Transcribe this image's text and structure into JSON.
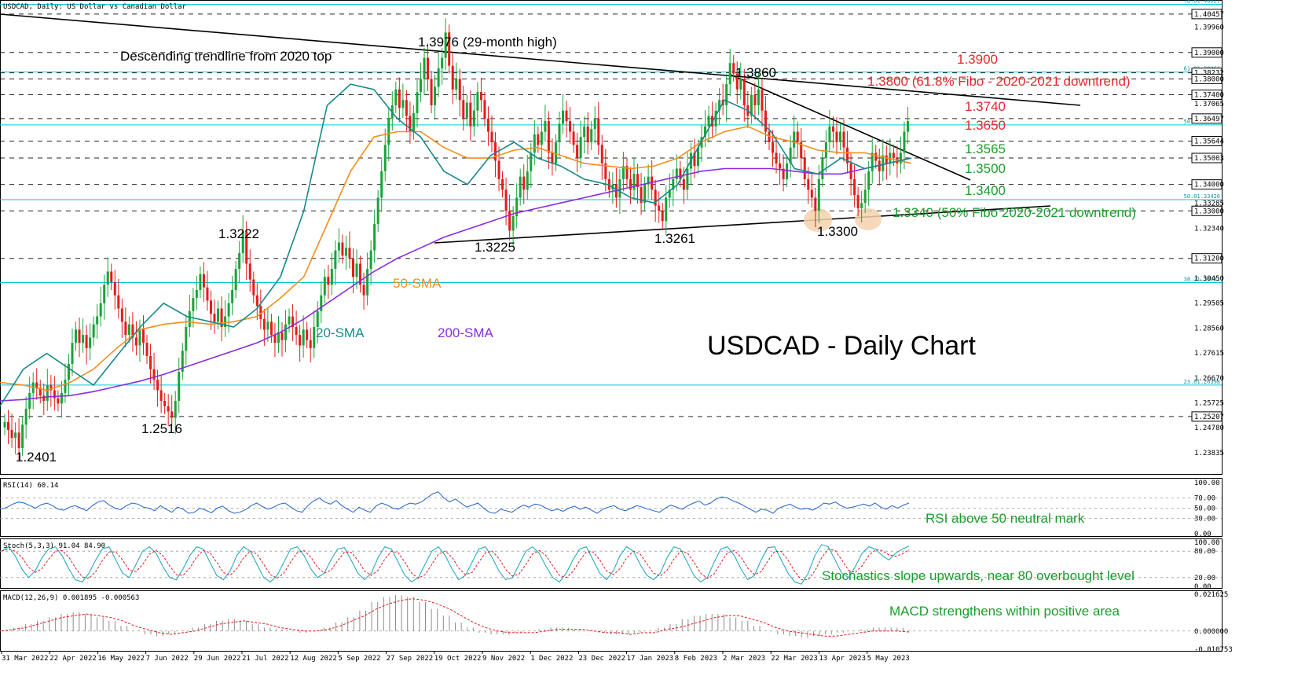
{
  "chart_data": {
    "type": "candlestick",
    "title": "USDCAD, Daily: US Dollar vs Canadian Dollar",
    "watermark": "USDCAD - Daily Chart",
    "ylim": [
      1.2303,
      1.4096
    ],
    "x_ticks": [
      "31 Mar 2022",
      "22 Apr 2022",
      "16 May 2022",
      "7 Jun 2022",
      "29 Jun 2022",
      "21 Jul 2022",
      "12 Aug 2022",
      "5 Sep 2022",
      "27 Sep 2022",
      "19 Oct 2022",
      "9 Nov 2022",
      "1 Dec 2022",
      "23 Dec 2022",
      "17 Jan 2023",
      "8 Feb 2023",
      "2 Mar 2023",
      "22 Mar 2023",
      "13 Apr 2023",
      "5 May 2023"
    ],
    "y_ticks": [
      "1.39960",
      "1.39000",
      "1.37065",
      "1.35640",
      "1.34230",
      "1.33285",
      "1.32340",
      "1.31395",
      "1.30450",
      "1.29505",
      "1.28560",
      "1.27615",
      "1.26670",
      "1.25725",
      "1.24780",
      "1.23835"
    ],
    "price_boxes": [
      {
        "label": "1.40457",
        "value": 1.40457
      },
      {
        "label": "1.39000",
        "value": 1.39
      },
      {
        "label": "1.38232",
        "value": 1.38232
      },
      {
        "label": "1.38000",
        "value": 1.38
      },
      {
        "label": "1.37400",
        "value": 1.374
      },
      {
        "label": "1.36497",
        "value": 1.36497
      },
      {
        "label": "1.35644",
        "value": 1.35644
      },
      {
        "label": "1.35003",
        "value": 1.35003
      },
      {
        "label": "1.34000",
        "value": 1.34
      },
      {
        "label": "1.33000",
        "value": 1.33
      },
      {
        "label": "1.31200",
        "value": 1.312
      },
      {
        "label": "1.25207",
        "value": 1.25207
      }
    ],
    "fib_levels": [
      {
        "label": "78.61.40827",
        "value": 1.40827
      },
      {
        "label": "61.81.38261",
        "value": 1.38261
      },
      {
        "label": "50.01.36257",
        "value": 1.36257
      },
      {
        "label": "50.01.33426",
        "value": 1.33426
      },
      {
        "label": "38.21.30281",
        "value": 1.30281
      },
      {
        "label": "23.61.26398",
        "value": 1.26398
      }
    ],
    "candles": [
      1.25,
      1.247,
      1.244,
      1.246,
      1.2401,
      1.249,
      1.255,
      1.261,
      1.265,
      1.263,
      1.26,
      1.258,
      1.264,
      1.262,
      1.259,
      1.257,
      1.261,
      1.266,
      1.272,
      1.28,
      1.285,
      1.28,
      1.283,
      1.278,
      1.282,
      1.287,
      1.29,
      1.295,
      1.302,
      1.307,
      1.303,
      1.298,
      1.293,
      1.288,
      1.283,
      1.287,
      1.282,
      1.279,
      1.285,
      1.28,
      1.275,
      1.27,
      1.266,
      1.262,
      1.258,
      1.256,
      1.254,
      1.2516,
      1.258,
      1.269,
      1.277,
      1.286,
      1.292,
      1.297,
      1.3,
      1.306,
      1.301,
      1.296,
      1.291,
      1.288,
      1.293,
      1.286,
      1.29,
      1.295,
      1.3,
      1.308,
      1.314,
      1.3222,
      1.31,
      1.304,
      1.298,
      1.294,
      1.289,
      1.285,
      1.288,
      1.283,
      1.28,
      1.284,
      1.281,
      1.287,
      1.29,
      1.286,
      1.283,
      1.279,
      1.285,
      1.281,
      1.278,
      1.286,
      1.292,
      1.298,
      1.305,
      1.302,
      1.308,
      1.315,
      1.318,
      1.313,
      1.316,
      1.312,
      1.305,
      1.31,
      1.302,
      1.298,
      1.308,
      1.315,
      1.325,
      1.335,
      1.345,
      1.355,
      1.365,
      1.37,
      1.376,
      1.369,
      1.372,
      1.366,
      1.36,
      1.367,
      1.375,
      1.38,
      1.388,
      1.38,
      1.37,
      1.377,
      1.384,
      1.388,
      1.3976,
      1.385,
      1.376,
      1.38,
      1.372,
      1.365,
      1.371,
      1.362,
      1.368,
      1.375,
      1.372,
      1.365,
      1.36,
      1.356,
      1.349,
      1.342,
      1.338,
      1.33,
      1.3225,
      1.328,
      1.335,
      1.343,
      1.338,
      1.345,
      1.352,
      1.359,
      1.355,
      1.36,
      1.364,
      1.352,
      1.348,
      1.356,
      1.363,
      1.368,
      1.364,
      1.36,
      1.355,
      1.35,
      1.358,
      1.362,
      1.356,
      1.361,
      1.365,
      1.355,
      1.348,
      1.342,
      1.338,
      1.34,
      1.335,
      1.342,
      1.347,
      1.342,
      1.338,
      1.344,
      1.339,
      1.333,
      1.34,
      1.343,
      1.338,
      1.332,
      1.33,
      1.3261,
      1.335,
      1.338,
      1.342,
      1.346,
      1.342,
      1.338,
      1.346,
      1.352,
      1.347,
      1.354,
      1.358,
      1.362,
      1.366,
      1.362,
      1.368,
      1.372,
      1.37,
      1.378,
      1.386,
      1.382,
      1.376,
      1.38,
      1.37,
      1.366,
      1.374,
      1.37,
      1.376,
      1.368,
      1.36,
      1.356,
      1.352,
      1.348,
      1.346,
      1.342,
      1.348,
      1.354,
      1.36,
      1.356,
      1.35,
      1.342,
      1.338,
      1.335,
      1.33,
      1.342,
      1.35,
      1.356,
      1.362,
      1.36,
      1.356,
      1.36,
      1.354,
      1.348,
      1.342,
      1.336,
      1.331,
      1.333,
      1.338,
      1.345,
      1.352,
      1.349,
      1.345,
      1.351,
      1.348,
      1.352,
      1.35,
      1.348,
      1.352,
      1.36,
      1.364
    ],
    "sma20": [
      1.256,
      1.27,
      1.276,
      1.27,
      1.264,
      1.275,
      1.286,
      1.295,
      1.29,
      1.288,
      1.286,
      1.293,
      1.305,
      1.33,
      1.37,
      1.378,
      1.376,
      1.365,
      1.358,
      1.345,
      1.34,
      1.351,
      1.356,
      1.35,
      1.347,
      1.342,
      1.34,
      1.335,
      1.333,
      1.34,
      1.356,
      1.372,
      1.368,
      1.36,
      1.346,
      1.344,
      1.35,
      1.346,
      1.348,
      1.35
    ],
    "sma50": [
      1.265,
      1.264,
      1.262,
      1.265,
      1.27,
      1.278,
      1.285,
      1.287,
      1.288,
      1.287,
      1.288,
      1.29,
      1.297,
      1.305,
      1.325,
      1.345,
      1.358,
      1.36,
      1.36,
      1.354,
      1.35,
      1.35,
      1.353,
      1.354,
      1.351,
      1.348,
      1.347,
      1.346,
      1.347,
      1.35,
      1.356,
      1.36,
      1.362,
      1.358,
      1.356,
      1.353,
      1.352,
      1.352,
      1.35,
      1.348
    ],
    "sma200": [
      1.258,
      1.2585,
      1.2595,
      1.26,
      1.2615,
      1.2635,
      1.2655,
      1.268,
      1.271,
      1.274,
      1.277,
      1.28,
      1.284,
      1.289,
      1.295,
      1.301,
      1.307,
      1.312,
      1.316,
      1.32,
      1.323,
      1.326,
      1.329,
      1.331,
      1.333,
      1.335,
      1.337,
      1.339,
      1.341,
      1.343,
      1.345,
      1.346,
      1.346,
      1.346,
      1.345,
      1.344,
      1.344,
      1.346,
      1.348,
      1.35
    ],
    "annotations": [
      {
        "text": "Descending trendline from 2020 top",
        "color": "#000000",
        "size": 17
      },
      {
        "text": "1.3976 (29-month high)",
        "color": "#000000",
        "size": 17
      },
      {
        "text": "1.3860",
        "color": "#000000",
        "size": 17
      },
      {
        "text": "1.3900",
        "color": "#e8262d",
        "size": 17
      },
      {
        "text": "1.3800 (61.8% Fibo - 2020-2021 downtrend)",
        "color": "#e8262d",
        "size": 17
      },
      {
        "text": "1.3740",
        "color": "#e8262d",
        "size": 17
      },
      {
        "text": "1.3650",
        "color": "#e8262d",
        "size": 17
      },
      {
        "text": "1.3565",
        "color": "#1a9e2c",
        "size": 17
      },
      {
        "text": "1.3500",
        "color": "#1a9e2c",
        "size": 17
      },
      {
        "text": "1.3400",
        "color": "#1a9e2c",
        "size": 17
      },
      {
        "text": "1.3340 (50% Fibo 2020-2021 downtrend)",
        "color": "#1a9e2c",
        "size": 17
      },
      {
        "text": "1.3300",
        "color": "#000000",
        "size": 17
      },
      {
        "text": "1.3225",
        "color": "#000000",
        "size": 17
      },
      {
        "text": "1.3261",
        "color": "#000000",
        "size": 17
      },
      {
        "text": "1.3222",
        "color": "#000000",
        "size": 17
      },
      {
        "text": "1.2516",
        "color": "#000000",
        "size": 17
      },
      {
        "text": "1.2401",
        "color": "#000000",
        "size": 17
      },
      {
        "text": "50-SMA",
        "color": "#f28e1c",
        "size": 17
      },
      {
        "text": "20-SMA",
        "color": "#168a8a",
        "size": 17
      },
      {
        "text": "200-SMA",
        "color": "#8a2be2",
        "size": 17
      }
    ],
    "rsi": {
      "title": "RSI(14) 60.14",
      "ticks": [
        "100.00",
        "70.00",
        "50.00",
        "30.00",
        "0.00"
      ],
      "note": "RSI above 50 neutral mark",
      "values": [
        48,
        52,
        58,
        62,
        60,
        55,
        50,
        57,
        60,
        55,
        48,
        46,
        52,
        55,
        50,
        45,
        55,
        62,
        65,
        56,
        50,
        47,
        55,
        60,
        58,
        52,
        50,
        45,
        55,
        48,
        42,
        52,
        48,
        40,
        42,
        50,
        46,
        41,
        50,
        54,
        45,
        40,
        42,
        47,
        55,
        60,
        53,
        48,
        52,
        58,
        60,
        52,
        45,
        42,
        55,
        64,
        70,
        62,
        58,
        65,
        55,
        48,
        42,
        52,
        46,
        42,
        54,
        60,
        56,
        50,
        48,
        55,
        60,
        58,
        62,
        70,
        78,
        82,
        70,
        62,
        68,
        60,
        52,
        56,
        60,
        50,
        42,
        40,
        48,
        45,
        42,
        50,
        56,
        52,
        58,
        56,
        50,
        45,
        48,
        44,
        50,
        54,
        48,
        52,
        46,
        40,
        48,
        52,
        55,
        48,
        45,
        50,
        55,
        52,
        48,
        45,
        42,
        50,
        56,
        52,
        48,
        55,
        60,
        64,
        56,
        60,
        68,
        72,
        70,
        64,
        60,
        54,
        48,
        42,
        48,
        46,
        40,
        50,
        54,
        58,
        52,
        48,
        50,
        46,
        52,
        60,
        58,
        62,
        55,
        50,
        52,
        55,
        58,
        54,
        60,
        52,
        48,
        55,
        50,
        56,
        60
      ]
    },
    "stoch": {
      "title": "Stoch(5,3,3) 91.04 84.90",
      "ticks": [
        "100.00",
        "80.00",
        "20.00",
        "0.00"
      ],
      "note": "Stochastics slope upwards, near 80 overbought level",
      "k": [
        80,
        90,
        70,
        40,
        20,
        35,
        65,
        85,
        90,
        70,
        40,
        15,
        10,
        30,
        60,
        85,
        90,
        60,
        30,
        20,
        50,
        80,
        90,
        75,
        45,
        20,
        15,
        40,
        70,
        90,
        85,
        55,
        25,
        15,
        35,
        70,
        90,
        80,
        50,
        20,
        10,
        25,
        55,
        85,
        90,
        70,
        40,
        20,
        30,
        60,
        85,
        88,
        60,
        30,
        15,
        30,
        65,
        90,
        85,
        55,
        25,
        10,
        20,
        50,
        80,
        90,
        70,
        40,
        15,
        25,
        55,
        85,
        90,
        65,
        35,
        15,
        20,
        50,
        80,
        90,
        75,
        45,
        20,
        10,
        30,
        60,
        85,
        90,
        60,
        30,
        15,
        35,
        70,
        90,
        80,
        50,
        25,
        15,
        30,
        65,
        90,
        85,
        55,
        25,
        10,
        20,
        55,
        85,
        90,
        70,
        40,
        15,
        25,
        60,
        88,
        90,
        60,
        30,
        10,
        5,
        30,
        70,
        95,
        90,
        60,
        30,
        20,
        45,
        75,
        90,
        85,
        70,
        60,
        75,
        85,
        91
      ]
    },
    "macd": {
      "title": "MACD(12,26,9) 0.001895 -0.000563",
      "ticks": [
        "0.021625",
        "0.000000",
        "-0.010753"
      ],
      "note": "MACD strengthens within positive area",
      "hist": [
        0.0,
        0.002,
        0.004,
        0.006,
        0.008,
        0.01,
        0.011,
        0.01,
        0.008,
        0.006,
        0.003,
        0.0,
        -0.002,
        -0.003,
        -0.002,
        0.0,
        0.002,
        0.004,
        0.006,
        0.007,
        0.006,
        0.004,
        0.002,
        0.001,
        0.0,
        -0.001,
        0.0,
        0.002,
        0.005,
        0.008,
        0.012,
        0.017,
        0.02,
        0.021,
        0.02,
        0.017,
        0.013,
        0.009,
        0.005,
        0.002,
        -0.001,
        -0.002,
        -0.002,
        -0.001,
        0.0,
        0.001,
        0.002,
        0.002,
        0.001,
        0.0,
        -0.001,
        -0.002,
        -0.002,
        -0.001,
        0.0,
        0.002,
        0.004,
        0.007,
        0.009,
        0.01,
        0.01,
        0.008,
        0.006,
        0.003,
        0.0,
        -0.002,
        -0.003,
        -0.004,
        -0.003,
        -0.002,
        -0.001,
        0.0,
        0.001,
        0.002,
        0.002,
        0.0019
      ],
      "signal": [
        0.0,
        0.001,
        0.002,
        0.004,
        0.006,
        0.008,
        0.009,
        0.01,
        0.009,
        0.008,
        0.006,
        0.003,
        0.001,
        -0.001,
        -0.002,
        -0.001,
        0.0,
        0.002,
        0.004,
        0.005,
        0.006,
        0.005,
        0.004,
        0.002,
        0.001,
        0.0,
        0.0,
        0.001,
        0.003,
        0.006,
        0.009,
        0.013,
        0.016,
        0.018,
        0.019,
        0.018,
        0.016,
        0.013,
        0.009,
        0.005,
        0.002,
        0.0,
        -0.001,
        -0.001,
        -0.001,
        0.0,
        0.001,
        0.001,
        0.001,
        0.0,
        -0.001,
        -0.001,
        -0.002,
        -0.001,
        -0.001,
        0.001,
        0.002,
        0.004,
        0.006,
        0.008,
        0.009,
        0.009,
        0.007,
        0.005,
        0.002,
        0.0,
        -0.001,
        -0.002,
        -0.003,
        -0.003,
        -0.002,
        -0.001,
        0.0,
        0.0,
        0.0,
        -0.0006
      ]
    },
    "colors": {
      "up": "#1aa33a",
      "down": "#e41b1b",
      "sma20": "#168a8a",
      "sma50": "#f28e1c",
      "sma200": "#8a2be2",
      "fib": "#00c8d7",
      "rsi": "#1f63c9",
      "stoch_k": "#17a2b8",
      "stoch_d": "#e41b1b"
    }
  }
}
